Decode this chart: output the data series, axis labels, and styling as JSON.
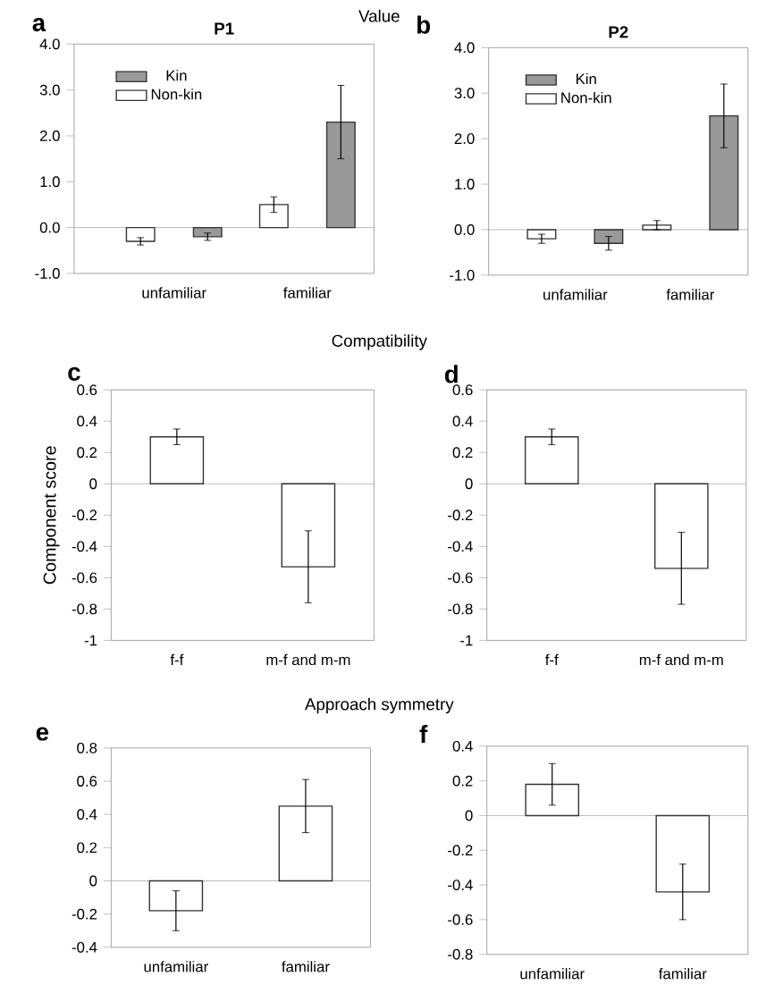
{
  "chart_data": [
    {
      "type": "bar",
      "title": "P1",
      "categories": [
        "unfamiliar",
        "familiar"
      ],
      "series": [
        {
          "name": "Non-kin",
          "color": "#ffffff",
          "values": [
            -0.3,
            0.5
          ],
          "errors": [
            0.08,
            0.17
          ]
        },
        {
          "name": "Kin",
          "color": "#999999",
          "values": [
            -0.2,
            2.3
          ],
          "errors": [
            0.08,
            0.8
          ]
        }
      ],
      "ylim": [
        -1,
        4
      ],
      "yticks": [
        {
          "value": -1,
          "label": "-1.0"
        },
        {
          "value": 0,
          "label": "0.0"
        },
        {
          "value": 1,
          "label": "1.0"
        },
        {
          "value": 2,
          "label": "2.0"
        },
        {
          "value": 3,
          "label": "3.0"
        },
        {
          "value": 4,
          "label": "4.0"
        }
      ],
      "legend": "top left",
      "ref_lines": [
        {
          "axis": "y",
          "value": 0,
          "color": "#aaaaaa"
        }
      ],
      "annotations": [
        "a",
        "Value"
      ]
    },
    {
      "type": "bar",
      "title": "P2",
      "categories": [
        "unfamiliar",
        "familiar"
      ],
      "series": [
        {
          "name": "Non-kin",
          "color": "#ffffff",
          "values": [
            -0.2,
            0.1
          ],
          "errors": [
            0.1,
            0.1
          ]
        },
        {
          "name": "Kin",
          "color": "#999999",
          "values": [
            -0.3,
            2.5
          ],
          "errors": [
            0.15,
            0.7
          ]
        }
      ],
      "ylim": [
        -1,
        4
      ],
      "yticks": [
        {
          "value": -1,
          "label": "-1.0"
        },
        {
          "value": 0,
          "label": "0.0"
        },
        {
          "value": 1,
          "label": "1.0"
        },
        {
          "value": 2,
          "label": "2.0"
        },
        {
          "value": 3,
          "label": "3.0"
        },
        {
          "value": 4,
          "label": "4.0"
        }
      ],
      "legend": "top left",
      "ref_lines": [
        {
          "axis": "y",
          "value": 0,
          "color": "#aaaaaa"
        }
      ],
      "annotations": [
        "b"
      ]
    },
    {
      "type": "bar",
      "ylabel": "Component score",
      "categories": [
        "f-f",
        "m-f and m-m"
      ],
      "values": [
        0.3,
        -0.53
      ],
      "errors": [
        0.05,
        0.23
      ],
      "color": "#ffffff",
      "ylim": [
        -1,
        0.6
      ],
      "yticks": [
        -1,
        -0.8,
        -0.6,
        -0.4,
        -0.2,
        0,
        0.2,
        0.4,
        0.6
      ],
      "ref_lines": [
        {
          "axis": "y",
          "value": 0,
          "color": "#aaaaaa"
        }
      ],
      "annotations": [
        "c",
        "Compatibility"
      ]
    },
    {
      "type": "bar",
      "categories": [
        "f-f",
        "m-f and m-m"
      ],
      "values": [
        0.3,
        -0.54
      ],
      "errors": [
        0.05,
        0.23
      ],
      "color": "#ffffff",
      "ylim": [
        -1,
        0.6
      ],
      "yticks": [
        -1,
        -0.8,
        -0.6,
        -0.4,
        -0.2,
        0,
        0.2,
        0.4,
        0.6
      ],
      "ref_lines": [
        {
          "axis": "y",
          "value": 0,
          "color": "#aaaaaa"
        }
      ],
      "annotations": [
        "d"
      ]
    },
    {
      "type": "bar",
      "categories": [
        "unfamiliar",
        "familiar"
      ],
      "values": [
        -0.18,
        0.45
      ],
      "errors": [
        0.12,
        0.16
      ],
      "color": "#ffffff",
      "ylim": [
        -0.4,
        0.8
      ],
      "yticks": [
        -0.4,
        -0.2,
        0,
        0.2,
        0.4,
        0.6,
        0.8
      ],
      "ref_lines": [
        {
          "axis": "y",
          "value": 0,
          "color": "#aaaaaa"
        }
      ],
      "annotations": [
        "e",
        "Approach symmetry"
      ]
    },
    {
      "type": "bar",
      "categories": [
        "unfamiliar",
        "familiar"
      ],
      "values": [
        0.18,
        -0.44
      ],
      "errors": [
        0.12,
        0.16
      ],
      "color": "#ffffff",
      "ylim": [
        -0.8,
        0.4
      ],
      "yticks": [
        -0.8,
        -0.6,
        -0.4,
        -0.2,
        0,
        0.2,
        0.4
      ],
      "ref_lines": [
        {
          "axis": "y",
          "value": 0,
          "color": "#aaaaaa"
        }
      ],
      "annotations": [
        "f"
      ]
    }
  ]
}
